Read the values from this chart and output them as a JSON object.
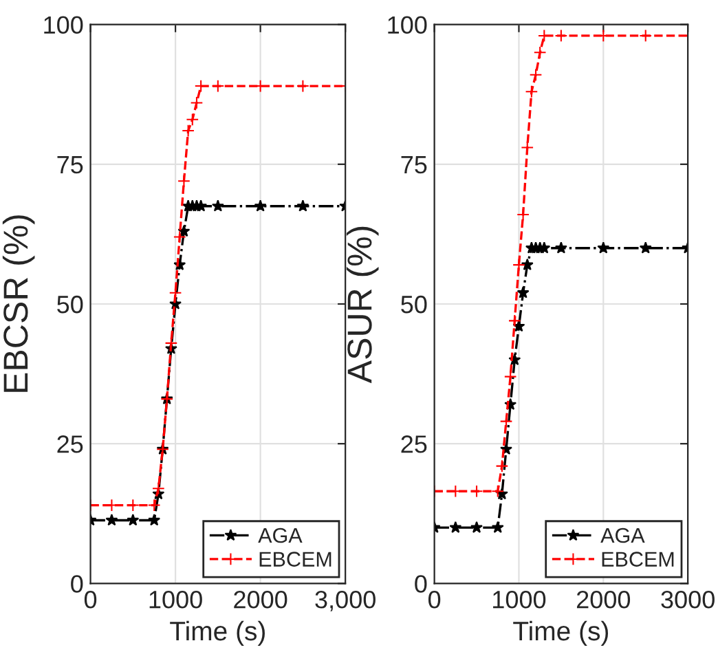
{
  "chart_data": [
    {
      "type": "line",
      "xlabel": "Time (s)",
      "ylabel": "EBCSR (%)",
      "xlim": [
        0,
        3000
      ],
      "xticks": [
        0,
        1000,
        2000,
        {
          "value": 3000,
          "label": "3,000"
        }
      ],
      "ylim": [
        0,
        100
      ],
      "yticks": [
        0,
        25,
        50,
        75,
        100
      ],
      "grid": true,
      "legend": "bottom right",
      "x": [
        0,
        250,
        500,
        750,
        800,
        850,
        900,
        950,
        1000,
        1050,
        1100,
        1150,
        1200,
        1250,
        1300,
        1500,
        2000,
        2500,
        3000
      ],
      "series": [
        {
          "name": "AGA",
          "color": "#000000",
          "marker": "star",
          "line_style": "dashdot",
          "values": [
            11.3,
            11.3,
            11.3,
            11.3,
            16,
            24,
            33,
            42,
            50,
            57,
            63,
            67.5,
            67.5,
            67.5,
            67.5,
            67.5,
            67.5,
            67.5,
            67.5
          ]
        },
        {
          "name": "EBCEM",
          "color": "#ff0000",
          "marker": "cross",
          "line_style": "dashed",
          "values": [
            14,
            14,
            14,
            14,
            17,
            24,
            33,
            43,
            52,
            62,
            72,
            81,
            83,
            86,
            89,
            89,
            89,
            89,
            89
          ]
        }
      ]
    },
    {
      "type": "line",
      "xlabel": "Time (s)",
      "ylabel": "ASUR (%)",
      "xlim": [
        0,
        3000
      ],
      "xticks": [
        0,
        1000,
        2000,
        3000
      ],
      "ylim": [
        0,
        100
      ],
      "yticks": [
        0,
        25,
        50,
        75,
        100
      ],
      "grid": true,
      "legend": "bottom right",
      "x": [
        0,
        250,
        500,
        750,
        800,
        850,
        900,
        950,
        1000,
        1050,
        1100,
        1150,
        1200,
        1250,
        1300,
        1500,
        2000,
        2500,
        3000
      ],
      "series": [
        {
          "name": "AGA",
          "color": "#000000",
          "marker": "star",
          "line_style": "dashdot",
          "values": [
            10,
            10,
            10,
            10,
            16,
            24,
            32,
            40,
            46,
            52,
            57,
            60,
            60,
            60,
            60,
            60,
            60,
            60,
            60
          ]
        },
        {
          "name": "EBCEM",
          "color": "#ff0000",
          "marker": "cross",
          "line_style": "dashed",
          "values": [
            16.5,
            16.5,
            16.5,
            16.5,
            21,
            29,
            37,
            47,
            57,
            66,
            78,
            88,
            91,
            95,
            98,
            98,
            98,
            98,
            98
          ]
        }
      ]
    }
  ]
}
